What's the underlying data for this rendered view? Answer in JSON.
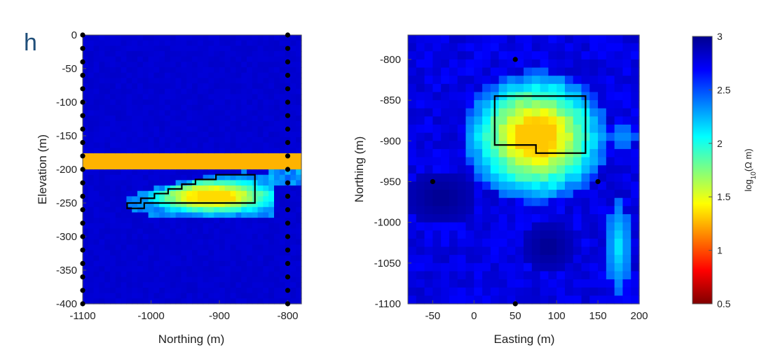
{
  "panel_letter": "h",
  "chart_data": [
    {
      "type": "heatmap",
      "name": "cross-section",
      "xlabel": "Northing (m)",
      "ylabel": "Elevation (m)",
      "xlim": [
        -1100,
        -780
      ],
      "ylim": [
        -400,
        0
      ],
      "xticks": [
        -1100,
        -1000,
        -900,
        -800
      ],
      "yticks": [
        0,
        -50,
        -100,
        -150,
        -200,
        -250,
        -300,
        -350,
        -400
      ],
      "background_log_resistivity": 2.8,
      "orange_band": {
        "northing": [
          -1100,
          -780
        ],
        "elevation": [
          -200,
          -178
        ],
        "log_resistivity": 1.25
      },
      "anomaly": {
        "northing": [
          -1040,
          -835
        ],
        "elevation": [
          -265,
          -205
        ],
        "min_log_resistivity": 1.35
      },
      "outline": [
        [
          -1035,
          -258
        ],
        [
          -1035,
          -250
        ],
        [
          -1015,
          -250
        ],
        [
          -1015,
          -243
        ],
        [
          -995,
          -243
        ],
        [
          -995,
          -236
        ],
        [
          -975,
          -236
        ],
        [
          -975,
          -229
        ],
        [
          -955,
          -229
        ],
        [
          -955,
          -222
        ],
        [
          -935,
          -222
        ],
        [
          -935,
          -215
        ],
        [
          -905,
          -215
        ],
        [
          -905,
          -208
        ],
        [
          -848,
          -208
        ],
        [
          -848,
          -250
        ],
        [
          -1010,
          -250
        ],
        [
          -1010,
          -258
        ]
      ],
      "electrodes": [
        {
          "northing": -1100,
          "elevations": [
            0,
            -20,
            -40,
            -60,
            -80,
            -100,
            -120,
            -140,
            -160,
            -180,
            -200,
            -220,
            -240,
            -260,
            -280,
            -300,
            -320,
            -340,
            -360,
            -380,
            -400
          ]
        },
        {
          "northing": -800,
          "elevations": [
            0,
            -20,
            -40,
            -60,
            -80,
            -100,
            -120,
            -140,
            -160,
            -180,
            -200,
            -220,
            -240,
            -260,
            -280,
            -300,
            -320,
            -340,
            -360,
            -380,
            -400
          ]
        }
      ]
    },
    {
      "type": "heatmap",
      "name": "plan-view",
      "xlabel": "Easting (m)",
      "ylabel": "Northing (m)",
      "xlim": [
        -80,
        200
      ],
      "ylim": [
        -1100,
        -770
      ],
      "xticks": [
        -50,
        0,
        50,
        100,
        150,
        200
      ],
      "yticks": [
        -800,
        -850,
        -900,
        -950,
        -1000,
        -1050,
        -1100
      ],
      "background_log_resistivity": 2.75,
      "anomaly": {
        "center": [
          75,
          -895
        ],
        "min_log_resistivity": 1.3
      },
      "outline": [
        [
          25,
          -845
        ],
        [
          135,
          -845
        ],
        [
          135,
          -915
        ],
        [
          75,
          -915
        ],
        [
          75,
          -905
        ],
        [
          25,
          -905
        ]
      ],
      "electrodes": [
        [
          50,
          -800
        ],
        [
          -50,
          -950
        ],
        [
          150,
          -950
        ],
        [
          50,
          -1100
        ]
      ]
    }
  ],
  "colorbar": {
    "label": "log10(Ω m)",
    "min": 0.5,
    "max": 3,
    "ticks": [
      3,
      2.5,
      2,
      1.5,
      1,
      0.5
    ],
    "colormap": "jet"
  }
}
